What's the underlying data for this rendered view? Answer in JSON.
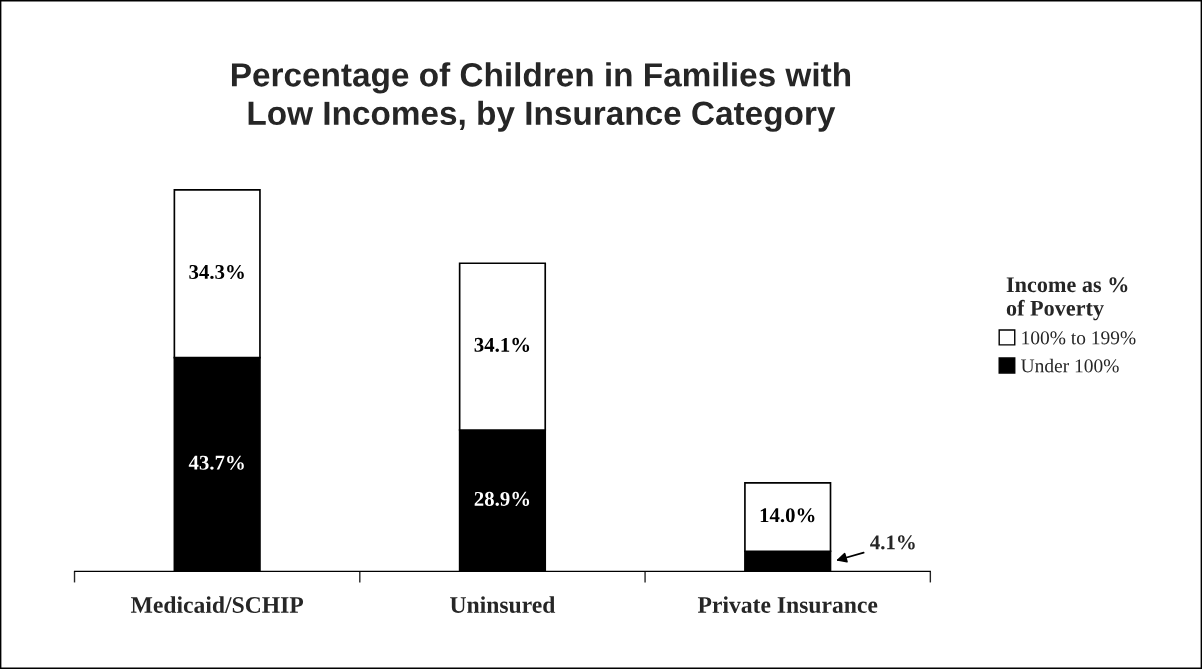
{
  "chart_data": {
    "type": "bar",
    "title": "Percentage of Children in Families with\nLow Incomes, by Insurance Category",
    "categories": [
      "Medicaid/SCHIP",
      "Uninsured",
      "Private Insurance"
    ],
    "stacked": true,
    "series": [
      {
        "name": "Under 100%",
        "color": "#000000",
        "values": [
          43.7,
          28.9,
          4.1
        ],
        "value_labels": [
          "43.7%",
          "28.9%",
          "4.1%"
        ]
      },
      {
        "name": "100% to 199%",
        "color": "#ffffff",
        "values": [
          34.3,
          34.1,
          14.0
        ],
        "value_labels": [
          "34.3%",
          "34.1%",
          "14.0%"
        ]
      }
    ],
    "legend_title": "Income as %\nof Poverty",
    "legend": "right",
    "grid": false
  }
}
